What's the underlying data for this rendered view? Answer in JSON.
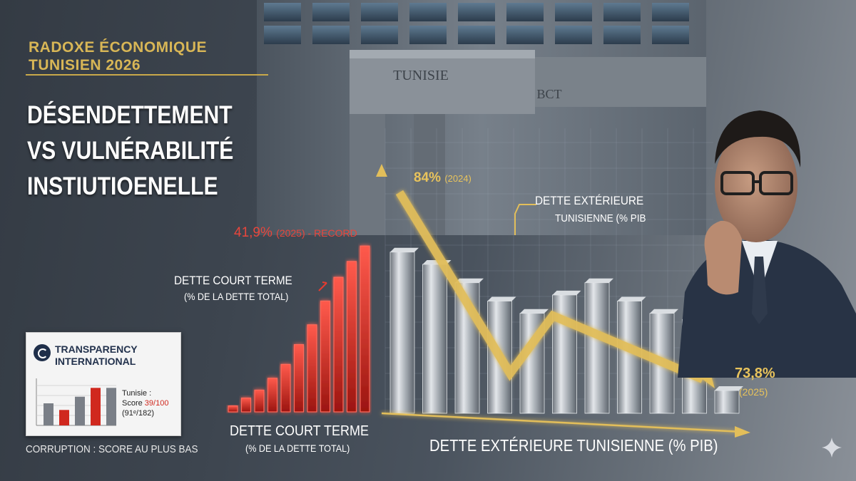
{
  "header": {
    "kicker_line1": "RADOXE ÉCONOMIQUE",
    "kicker_line2": "TUNISIEN 2026",
    "headline_line1": "DÉSENDETTEMENT",
    "headline_line2": "VS VULNÉRABILITÉ",
    "headline_line3": "INSTIUTIOENELLE"
  },
  "building": {
    "sign1": "TUNISIE",
    "sign2": "BCT"
  },
  "transparency_card": {
    "name_line1": "TRANSPARENCY",
    "name_line2": "INTERNATIONAL",
    "country_label": "Tunisie :",
    "score_prefix": "Score ",
    "score_value": "39/100",
    "rank": "(91ᵉ/182)",
    "caption": "CORRUPTION : SCORE AU PLUS BAS"
  },
  "annotations": {
    "red_peak_value": "41,9%",
    "red_peak_detail": "(2025) - RECORD",
    "red_label_line1": "DETTE COURT TERME",
    "red_label_line2": "(% DE LA DETTE TOTAL)",
    "red_axis_line1": "DETTE COURT TERME",
    "red_axis_line2": "(% DE LA DETTE TOTAL)",
    "gold_start_value": "84%",
    "gold_start_year": "(2024)",
    "gold_title_line1": "DETTE EXTÉRIEURE",
    "gold_title_line2": "TUNISIENNE (% PIB",
    "gold_end_value": "73,8%",
    "gold_end_year": "(2025)",
    "gold_axis_label": "DETTE EXTÉRIEURE TUNISIENNE (% PIB)"
  },
  "colors": {
    "red": "#e63b30",
    "gold": "#e2be5a",
    "steel": "#c9ced4",
    "ti_red": "#d0281e"
  },
  "chart_data": [
    {
      "type": "bar",
      "name": "DETTE COURT TERME (% DE LA DETTE TOTAL)",
      "values": [
        1.5,
        3.5,
        5.5,
        8.5,
        12,
        17,
        22,
        28,
        34,
        38,
        41.9
      ],
      "annotated_value": {
        "value": 41.9,
        "label": "41,9% (2025) - RECORD"
      },
      "ylim": [
        0,
        45
      ],
      "color": "red"
    },
    {
      "type": "bar",
      "name": "DETTE EXTÉRIEURE TUNISIENNE (% PIB)",
      "values": [
        84,
        82,
        79,
        76,
        74,
        77,
        79,
        76,
        74,
        73,
        73.8
      ],
      "trend_points": [
        84,
        77,
        80,
        73.8
      ],
      "annotated_values": [
        {
          "value": 84,
          "label": "84% (2024)"
        },
        {
          "value": 73.8,
          "label": "73,8% (2025)"
        }
      ],
      "ylim": [
        60,
        92
      ],
      "color": "silver with gold trend arrow"
    },
    {
      "type": "bar",
      "name": "Transparency International",
      "values": [
        20,
        14,
        26,
        34,
        34
      ],
      "highlight_index": 3,
      "score": 39,
      "score_max": 100,
      "rank": 91,
      "rank_total": 182
    }
  ]
}
